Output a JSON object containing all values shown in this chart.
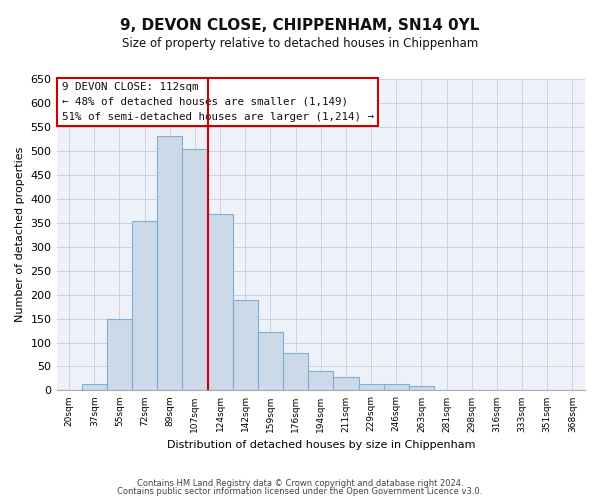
{
  "title": "9, DEVON CLOSE, CHIPPENHAM, SN14 0YL",
  "subtitle": "Size of property relative to detached houses in Chippenham",
  "xlabel": "Distribution of detached houses by size in Chippenham",
  "ylabel": "Number of detached properties",
  "footer_line1": "Contains HM Land Registry data © Crown copyright and database right 2024.",
  "footer_line2": "Contains public sector information licensed under the Open Government Licence v3.0.",
  "bar_labels": [
    "20sqm",
    "37sqm",
    "55sqm",
    "72sqm",
    "89sqm",
    "107sqm",
    "124sqm",
    "142sqm",
    "159sqm",
    "176sqm",
    "194sqm",
    "211sqm",
    "229sqm",
    "246sqm",
    "263sqm",
    "281sqm",
    "298sqm",
    "316sqm",
    "333sqm",
    "351sqm",
    "368sqm"
  ],
  "bar_values": [
    0,
    13,
    150,
    353,
    530,
    503,
    368,
    188,
    122,
    78,
    40,
    28,
    13,
    13,
    10,
    0,
    0,
    0,
    0,
    0,
    0
  ],
  "bar_color": "#ccd9e8",
  "bar_edge_color": "#7fafd4",
  "ylim": [
    0,
    650
  ],
  "yticks": [
    0,
    50,
    100,
    150,
    200,
    250,
    300,
    350,
    400,
    450,
    500,
    550,
    600,
    650
  ],
  "vline_color": "#cc0000",
  "vline_index": 5.5,
  "annotation_title": "9 DEVON CLOSE: 112sqm",
  "annotation_line1": "← 48% of detached houses are smaller (1,149)",
  "annotation_line2": "51% of semi-detached houses are larger (1,214) →",
  "background_color": "#ffffff",
  "grid_color": "#c8d4e0",
  "plot_bg_color": "#eef2f8"
}
